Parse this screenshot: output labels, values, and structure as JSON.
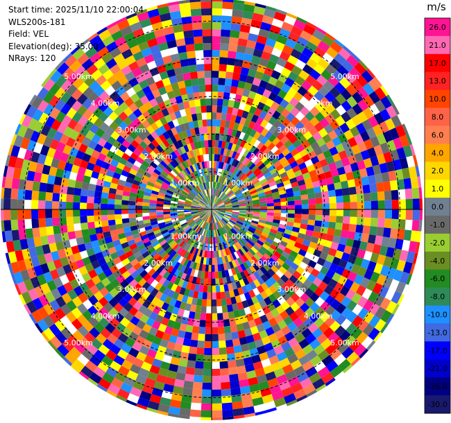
{
  "info": {
    "start_time": "Start time: 2025/11/10 22:00:04",
    "instrument": "WLS200s-181",
    "field": "Field: VEL",
    "elevation": "Elevation(deg): 35.00",
    "nrays": "NRays: 120"
  },
  "colorbar": {
    "unit": "m/s",
    "ticks": [
      "26.0",
      "21.0",
      "17.0",
      "13.0",
      "10.0",
      "8.0",
      "6.0",
      "4.0",
      "2.0",
      "1.0",
      "0.0",
      "-1.0",
      "-2.0",
      "-4.0",
      "-6.0",
      "-8.0",
      "-10.0",
      "-13.0",
      "-17.0",
      "-21.0",
      "-26.0",
      "-30.0"
    ],
    "colors": [
      "#ff1493",
      "#ff69b4",
      "#ff0000",
      "#ff2222",
      "#ff4500",
      "#ff6347",
      "#ff7f50",
      "#ffa500",
      "#ffd700",
      "#ffff00",
      "#708090",
      "#696969",
      "#9acd32",
      "#6b8e23",
      "#228b22",
      "#2e8b57",
      "#1e90ff",
      "#4169e1",
      "#0000ff",
      "#0000cd",
      "#000080",
      "#191970"
    ]
  },
  "chart_data": {
    "type": "heatmap",
    "projection": "polar-ppi",
    "field": "VEL",
    "unit": "m/s",
    "nrays": 120,
    "range_rings_km": [
      1,
      2,
      3,
      4,
      5
    ],
    "range_ring_labels": [
      "1.00km",
      "2.00km",
      "3.00km",
      "4.00km",
      "5.00km"
    ],
    "max_range_km": 5.6,
    "grid": true
  }
}
